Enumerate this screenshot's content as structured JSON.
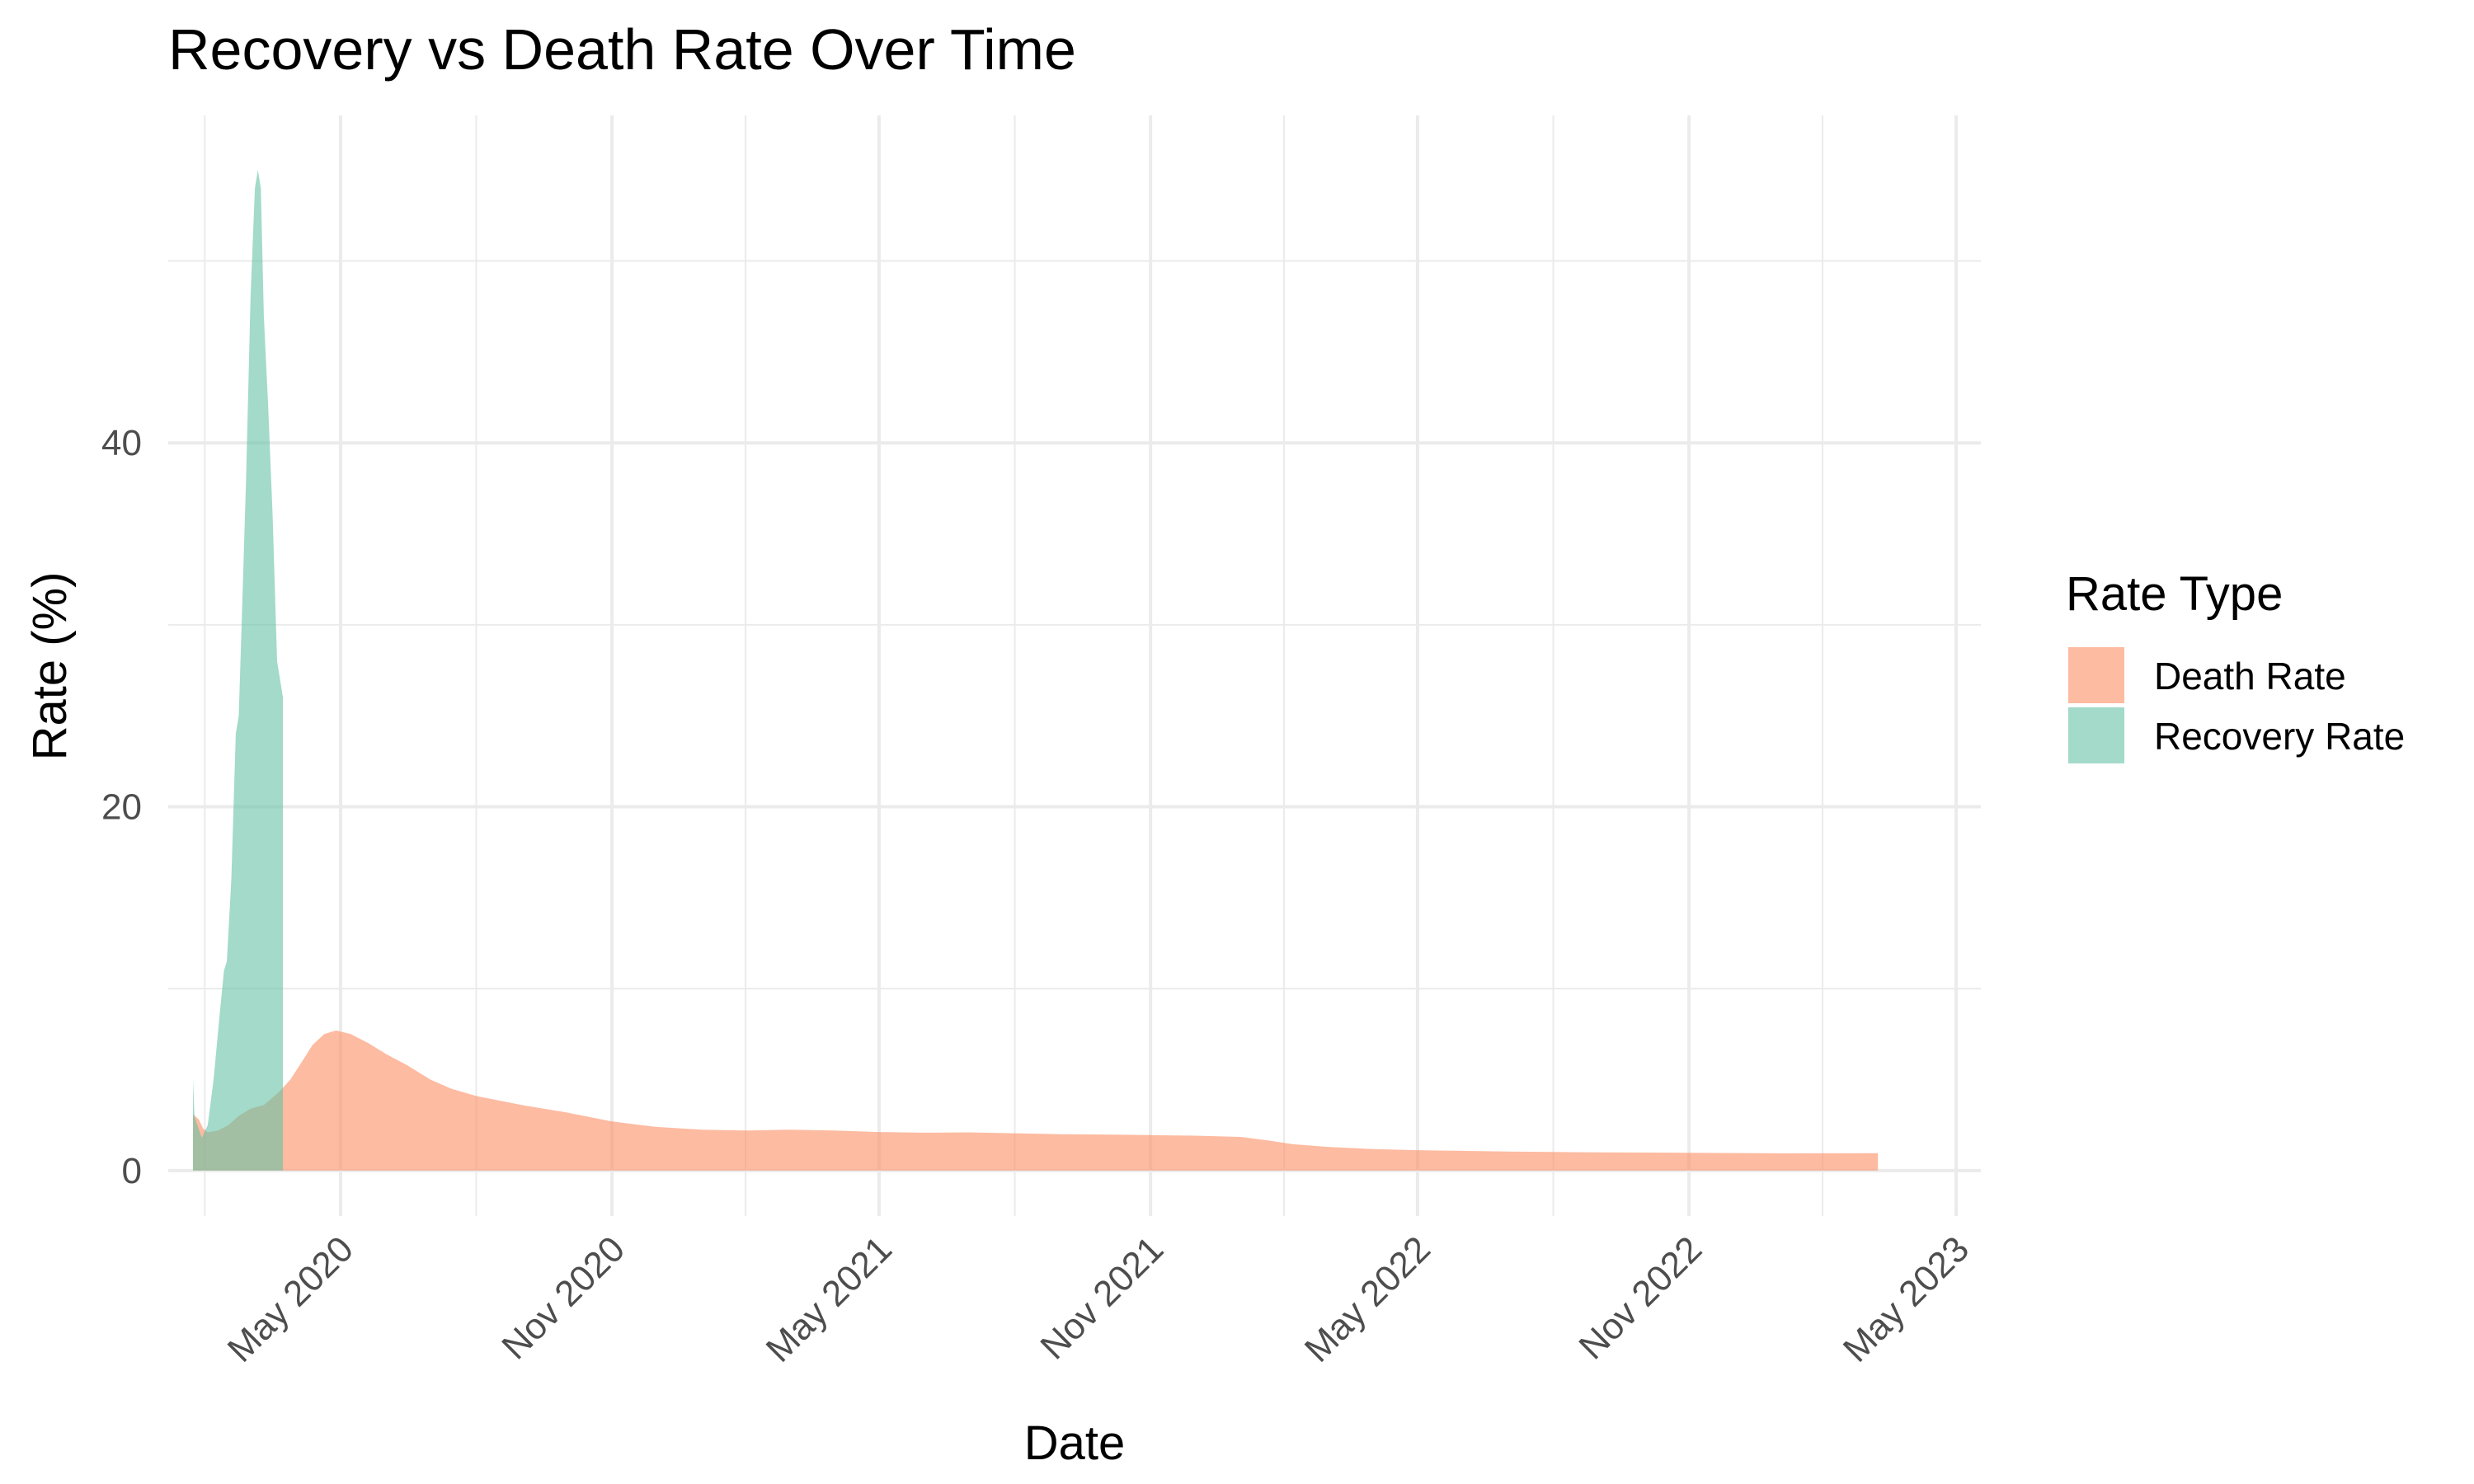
{
  "chart_data": {
    "type": "area",
    "title": "Recovery vs Death Rate Over Time",
    "xlabel": "Date",
    "ylabel": "Rate (%)",
    "x_range": [
      "2020-01-22",
      "2023-05-01"
    ],
    "ylim": [
      -2.5,
      58
    ],
    "y_ticks": [
      0,
      20,
      40
    ],
    "x_ticks": [
      {
        "date": "2020-05-01",
        "label": "May 2020"
      },
      {
        "date": "2020-11-01",
        "label": "Nov 2020"
      },
      {
        "date": "2021-05-01",
        "label": "May 2021"
      },
      {
        "date": "2021-11-01",
        "label": "Nov 2021"
      },
      {
        "date": "2022-05-01",
        "label": "May 2022"
      },
      {
        "date": "2022-11-01",
        "label": "Nov 2022"
      },
      {
        "date": "2023-05-01",
        "label": "May 2023"
      }
    ],
    "legend": {
      "title": "Rate Type",
      "position": "right",
      "entries": [
        {
          "name": "Death Rate",
          "color": "#FC8D62"
        },
        {
          "name": "Recovery Rate",
          "color": "#66C2A5"
        }
      ]
    },
    "series": [
      {
        "name": "Death Rate",
        "color": "#FC8D62",
        "points": [
          [
            "2020-01-22",
            3.1
          ],
          [
            "2020-01-26",
            2.8
          ],
          [
            "2020-01-29",
            2.3
          ],
          [
            "2020-02-01",
            2.1
          ],
          [
            "2020-02-08",
            2.2
          ],
          [
            "2020-02-15",
            2.5
          ],
          [
            "2020-02-22",
            3.0
          ],
          [
            "2020-03-01",
            3.4
          ],
          [
            "2020-03-10",
            3.6
          ],
          [
            "2020-03-20",
            4.3
          ],
          [
            "2020-03-28",
            5.0
          ],
          [
            "2020-04-05",
            6.0
          ],
          [
            "2020-04-12",
            6.9
          ],
          [
            "2020-04-20",
            7.5
          ],
          [
            "2020-04-28",
            7.7
          ],
          [
            "2020-05-08",
            7.5
          ],
          [
            "2020-05-20",
            7.0
          ],
          [
            "2020-06-01",
            6.4
          ],
          [
            "2020-06-15",
            5.8
          ],
          [
            "2020-07-01",
            5.0
          ],
          [
            "2020-07-15",
            4.5
          ],
          [
            "2020-08-01",
            4.1
          ],
          [
            "2020-09-01",
            3.6
          ],
          [
            "2020-10-01",
            3.2
          ],
          [
            "2020-11-01",
            2.7
          ],
          [
            "2020-12-01",
            2.4
          ],
          [
            "2021-01-01",
            2.25
          ],
          [
            "2021-02-01",
            2.2
          ],
          [
            "2021-03-01",
            2.25
          ],
          [
            "2021-04-01",
            2.2
          ],
          [
            "2021-05-01",
            2.12
          ],
          [
            "2021-06-01",
            2.08
          ],
          [
            "2021-07-01",
            2.1
          ],
          [
            "2021-08-01",
            2.05
          ],
          [
            "2021-09-01",
            2.0
          ],
          [
            "2021-10-01",
            1.98
          ],
          [
            "2021-11-01",
            1.95
          ],
          [
            "2021-12-01",
            1.92
          ],
          [
            "2022-01-01",
            1.85
          ],
          [
            "2022-01-20",
            1.65
          ],
          [
            "2022-02-05",
            1.45
          ],
          [
            "2022-03-01",
            1.3
          ],
          [
            "2022-04-01",
            1.18
          ],
          [
            "2022-05-01",
            1.12
          ],
          [
            "2022-07-01",
            1.05
          ],
          [
            "2022-09-01",
            1.0
          ],
          [
            "2022-11-01",
            0.98
          ],
          [
            "2023-01-01",
            0.95
          ],
          [
            "2023-03-09",
            0.96
          ]
        ]
      },
      {
        "name": "Recovery Rate",
        "color": "#66C2A5",
        "points": [
          [
            "2020-01-22",
            5.0
          ],
          [
            "2020-01-23",
            3.0
          ],
          [
            "2020-01-25",
            2.5
          ],
          [
            "2020-01-28",
            1.8
          ],
          [
            "2020-02-01",
            2.5
          ],
          [
            "2020-02-05",
            5.0
          ],
          [
            "2020-02-09",
            8.5
          ],
          [
            "2020-02-12",
            11.0
          ],
          [
            "2020-02-14",
            11.5
          ],
          [
            "2020-02-17",
            16.0
          ],
          [
            "2020-02-20",
            24.0
          ],
          [
            "2020-02-22",
            25.0
          ],
          [
            "2020-02-24",
            30.0
          ],
          [
            "2020-02-27",
            38.0
          ],
          [
            "2020-03-01",
            48.0
          ],
          [
            "2020-03-04",
            54.0
          ],
          [
            "2020-03-06",
            55.0
          ],
          [
            "2020-03-08",
            54.0
          ],
          [
            "2020-03-10",
            47.0
          ],
          [
            "2020-03-13",
            42.0
          ],
          [
            "2020-03-16",
            36.0
          ],
          [
            "2020-03-19",
            28.0
          ],
          [
            "2020-03-23",
            26.0
          ]
        ]
      }
    ]
  }
}
